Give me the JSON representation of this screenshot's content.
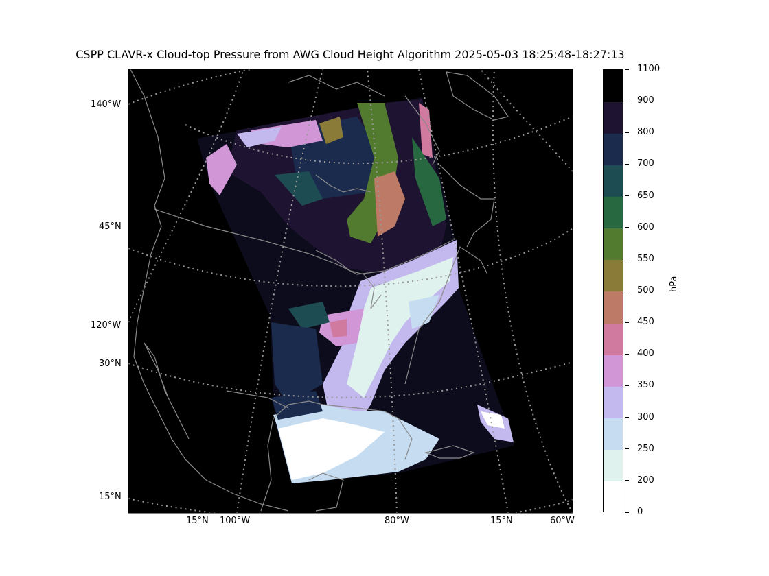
{
  "title": "CSPP CLAVR-x Cloud-top Pressure from AWG Cloud Height Algorithm 2025-05-03 18:25:48-18:27:13",
  "map": {
    "background": "#000000",
    "coastline_color": "#8a8a8a",
    "gridline_color": "#9a9a9a",
    "left_labels": [
      {
        "text": "140°W"
      },
      {
        "text": "45°N"
      },
      {
        "text": "120°W"
      },
      {
        "text": "30°N"
      },
      {
        "text": "15°N"
      }
    ],
    "bottom_labels": [
      {
        "text": "15°N"
      },
      {
        "text": "100°W"
      },
      {
        "text": "80°W"
      },
      {
        "text": "15°N"
      },
      {
        "text": "60°W"
      }
    ]
  },
  "colorbar": {
    "unit": "hPa",
    "levels": [
      "0",
      "200",
      "250",
      "300",
      "350",
      "400",
      "450",
      "500",
      "550",
      "600",
      "650",
      "700",
      "800",
      "900",
      "1100"
    ],
    "colors": [
      "#ffffff",
      "#dff2ee",
      "#c6dcf1",
      "#c4b9ee",
      "#d196d6",
      "#d17aa0",
      "#bd7a66",
      "#8a7b39",
      "#537b30",
      "#276840",
      "#1d4d53",
      "#1b2b4d",
      "#1e1431",
      "#000000"
    ]
  }
}
